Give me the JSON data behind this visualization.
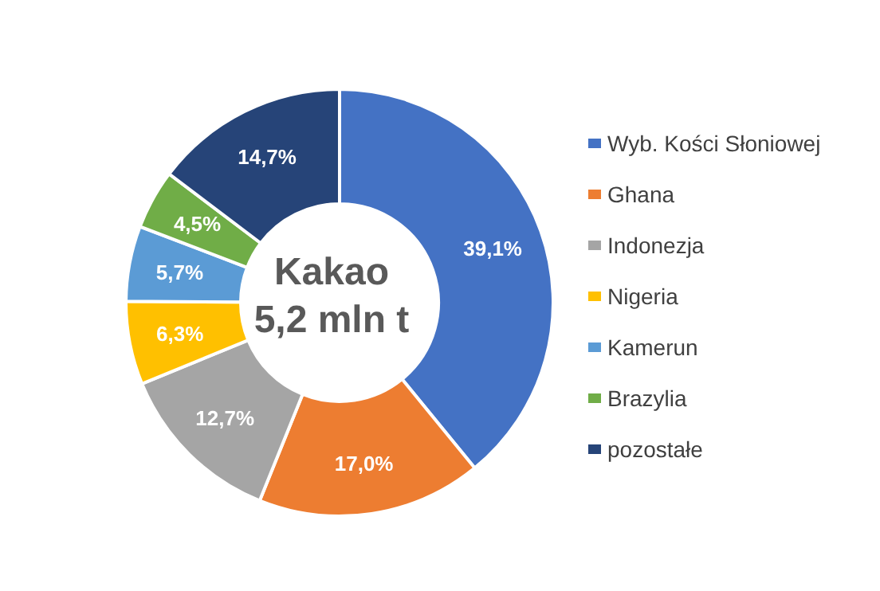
{
  "chart_data": {
    "type": "donut",
    "title": "Kakao",
    "subtitle": "5,2 mln t",
    "categories": [
      "Wyb. Kości Słoniowej",
      "Ghana",
      "Indonezja",
      "Nigeria",
      "Kamerun",
      "Brazylia",
      "pozostałe"
    ],
    "values": [
      39.1,
      17.0,
      12.7,
      6.3,
      5.7,
      4.5,
      14.7
    ],
    "colors": [
      "#4472c4",
      "#ed7d31",
      "#a5a5a5",
      "#ffc000",
      "#5b9bd5",
      "#70ad47",
      "#264478"
    ],
    "value_labels": [
      "39,1%",
      "17,0%",
      "12,7%",
      "6,3%",
      "5,7%",
      "4,5%",
      "14,7%"
    ],
    "legend": "right"
  }
}
